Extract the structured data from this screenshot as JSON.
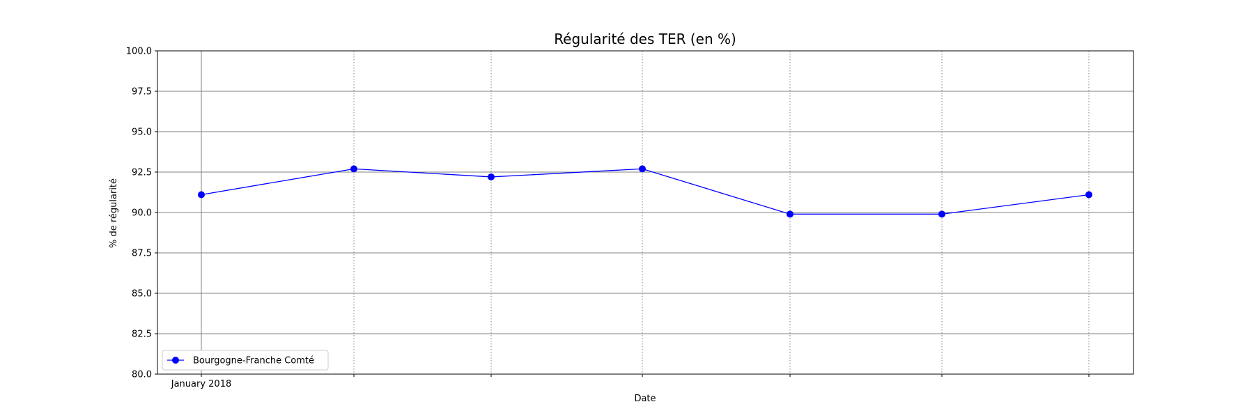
{
  "chart_data": {
    "type": "line",
    "title": "Régularité des TER (en %)",
    "xlabel": "Date",
    "ylabel": "% de régularité",
    "x": [
      "2018-01-01",
      "2018-02-01",
      "2018-03-01",
      "2018-04-01",
      "2018-05-01",
      "2018-06-01",
      "2018-07-01"
    ],
    "x_tick_labels": [
      "January 2018",
      "",
      "",
      "",
      "",
      "",
      ""
    ],
    "ylim": [
      80,
      100
    ],
    "yticks": [
      "80.0",
      "82.5",
      "85.0",
      "87.5",
      "90.0",
      "92.5",
      "95.0",
      "97.5",
      "100.0"
    ],
    "grid": true,
    "legend_position": "lower-left",
    "series": [
      {
        "name": "Bourgogne-Franche Comté",
        "color": "#0000ff",
        "marker": "circle",
        "values": [
          91.1,
          92.7,
          92.2,
          92.7,
          89.9,
          89.9,
          91.1
        ]
      }
    ]
  }
}
